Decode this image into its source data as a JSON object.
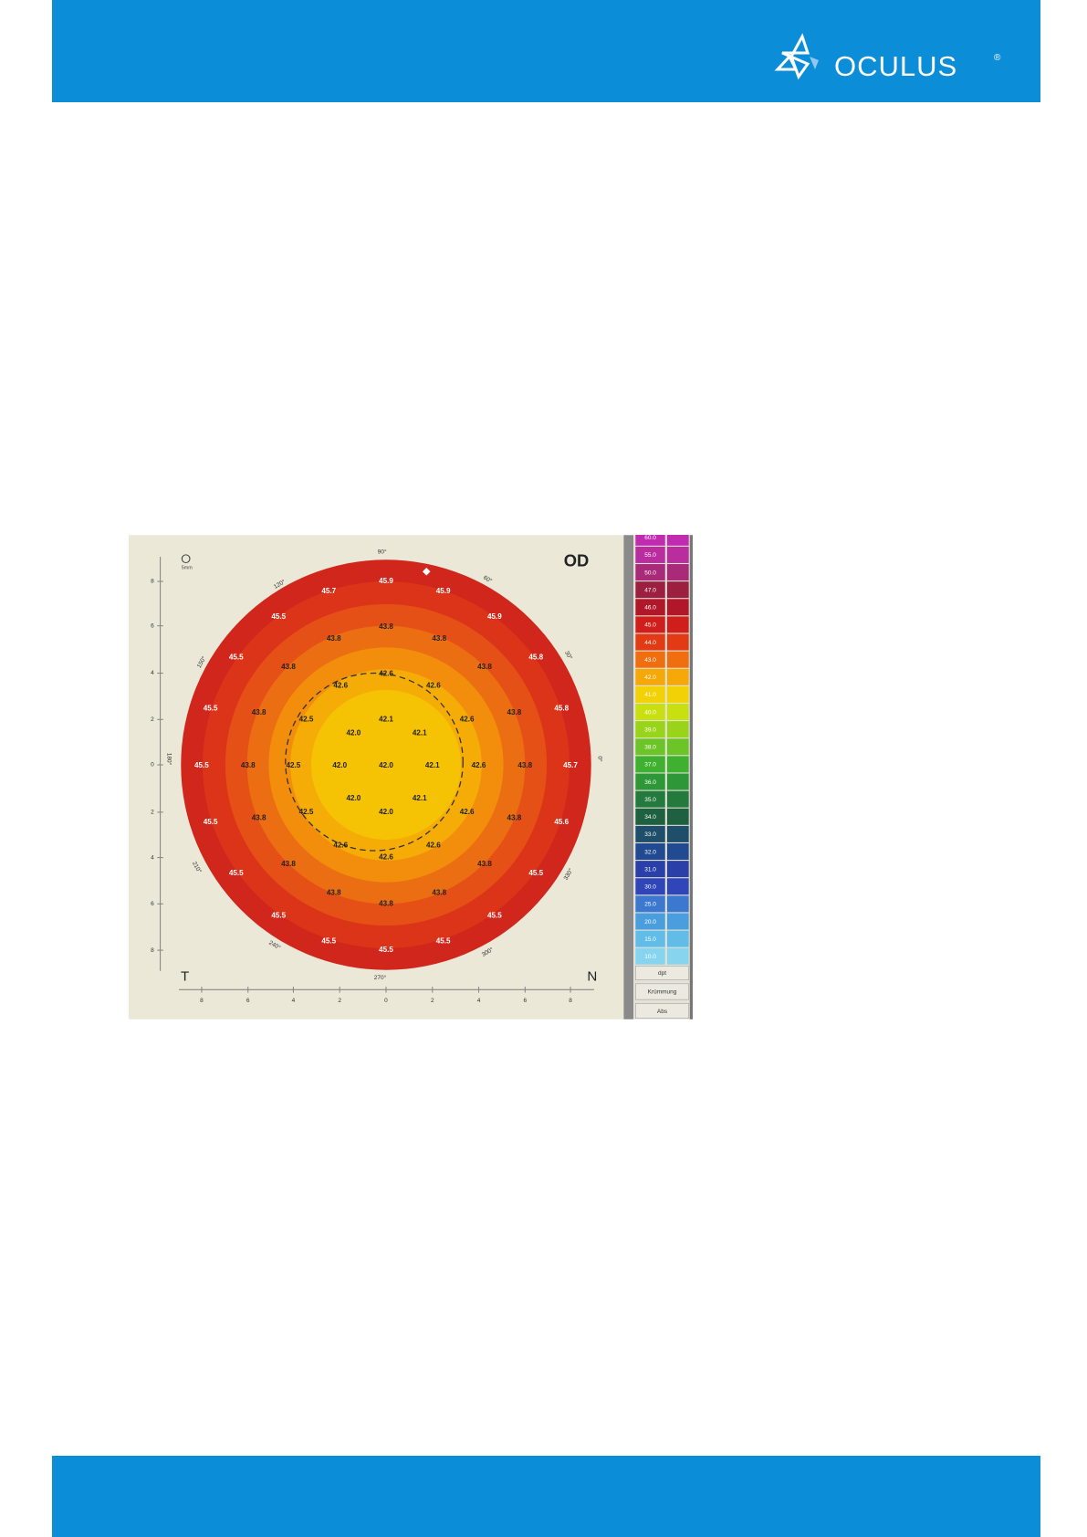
{
  "header": {
    "logo": "OCULUS",
    "registered": "®"
  },
  "map": {
    "eye": "OD",
    "temporal": "T",
    "nasal": "N",
    "zoom": "5mm",
    "angles": [
      "90°",
      "60°",
      "30°",
      "0°",
      "330°",
      "300°",
      "270°",
      "240°",
      "210°",
      "180°",
      "150°",
      "120°"
    ],
    "values": [
      "45.7",
      "45.9",
      "45.9",
      "45.5",
      "45.9",
      "43.8",
      "43.8",
      "43.8",
      "45.5",
      "43.8",
      "42.6",
      "43.8",
      "45.8",
      "42.6",
      "42.6",
      "45.5",
      "43.8",
      "42.5",
      "42.1",
      "42.6",
      "43.8",
      "45.8",
      "42.0",
      "42.1",
      "45.5",
      "43.8",
      "42.5",
      "42.0",
      "42.0",
      "42.1",
      "42.6",
      "43.8",
      "45.7",
      "42.0",
      "42.1",
      "45.5",
      "43.8",
      "42.5",
      "42.0",
      "42.6",
      "43.8",
      "45.6",
      "42.6",
      "42.6",
      "43.8",
      "42.6",
      "43.8",
      "45.5",
      "45.5",
      "43.8",
      "43.8",
      "43.8",
      "45.5",
      "45.5",
      "45.5",
      "45.5",
      "45.5"
    ],
    "y_ticks": [
      "8",
      "6",
      "4",
      "2",
      "0",
      "2",
      "4",
      "6",
      "8"
    ],
    "x_ticks": [
      "8",
      "6",
      "4",
      "2",
      "0",
      "2",
      "4",
      "6",
      "8"
    ],
    "scale": [
      "60.0",
      "55.0",
      "50.0",
      "47.0",
      "46.0",
      "45.0",
      "44.0",
      "43.0",
      "42.0",
      "41.0",
      "40.0",
      "39.0",
      "38.0",
      "37.0",
      "36.0",
      "35.0",
      "34.0",
      "33.0",
      "32.0",
      "31.0",
      "30.0",
      "25.0",
      "20.0",
      "15.0",
      "10.0"
    ],
    "buttons": [
      "dpt",
      "Krümmung",
      "Abs"
    ]
  }
}
